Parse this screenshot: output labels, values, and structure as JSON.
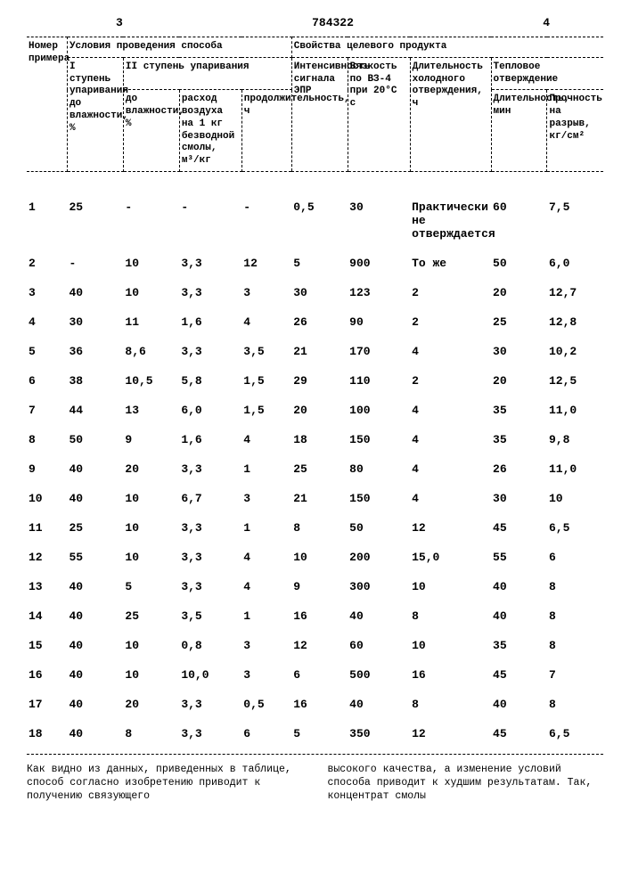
{
  "page": {
    "left_num": "3",
    "doc_num": "784322",
    "right_num": "4"
  },
  "head": {
    "col_id": "Номер примера",
    "group_a": "Условия проведения способа",
    "group_b": "Свойства целевого продукта",
    "r2_c2": "I ступень упаривания до влажности, %",
    "r2_c345": "II ступень упаривания",
    "r3_c3": "до влажности, %",
    "r3_c4": "расход воздуха на 1 кг безводной смолы, м³/кг",
    "r3_c5": "продолжительность, ч",
    "r2_c6": "Интенсивность сигнала ЭПР",
    "r2_c7": "Вязкость по ВЗ-4 при 20°С с",
    "r2_c8": "Длительность холодного отверждения, ч",
    "r2_c910": "Тепловое отверждение",
    "r3_c9": "Длительность, мин",
    "r3_c10": "Прочность на разрыв, кг/см²"
  },
  "rows": [
    [
      "1",
      "25",
      "-",
      "-",
      "-",
      "0,5",
      "30",
      "Практически не отверждается",
      "60",
      "7,5"
    ],
    [
      "2",
      "-",
      "10",
      "3,3",
      "12",
      "5",
      "900",
      "То же",
      "50",
      "6,0"
    ],
    [
      "3",
      "40",
      "10",
      "3,3",
      "3",
      "30",
      "123",
      "2",
      "20",
      "12,7"
    ],
    [
      "4",
      "30",
      "11",
      "1,6",
      "4",
      "26",
      "90",
      "2",
      "25",
      "12,8"
    ],
    [
      "5",
      "36",
      "8,6",
      "3,3",
      "3,5",
      "21",
      "170",
      "4",
      "30",
      "10,2"
    ],
    [
      "6",
      "38",
      "10,5",
      "5,8",
      "1,5",
      "29",
      "110",
      "2",
      "20",
      "12,5"
    ],
    [
      "7",
      "44",
      "13",
      "6,0",
      "1,5",
      "20",
      "100",
      "4",
      "35",
      "11,0"
    ],
    [
      "8",
      "50",
      "9",
      "1,6",
      "4",
      "18",
      "150",
      "4",
      "35",
      "9,8"
    ],
    [
      "9",
      "40",
      "20",
      "3,3",
      "1",
      "25",
      "80",
      "4",
      "26",
      "11,0"
    ],
    [
      "10",
      "40",
      "10",
      "6,7",
      "3",
      "21",
      "150",
      "4",
      "30",
      "10"
    ],
    [
      "11",
      "25",
      "10",
      "3,3",
      "1",
      "8",
      "50",
      "12",
      "45",
      "6,5"
    ],
    [
      "12",
      "55",
      "10",
      "3,3",
      "4",
      "10",
      "200",
      "15,0",
      "55",
      "6"
    ],
    [
      "13",
      "40",
      "5",
      "3,3",
      "4",
      "9",
      "300",
      "10",
      "40",
      "8"
    ],
    [
      "14",
      "40",
      "25",
      "3,5",
      "1",
      "16",
      "40",
      "8",
      "40",
      "8"
    ],
    [
      "15",
      "40",
      "10",
      "0,8",
      "3",
      "12",
      "60",
      "10",
      "35",
      "8"
    ],
    [
      "16",
      "40",
      "10",
      "10,0",
      "3",
      "6",
      "500",
      "16",
      "45",
      "7"
    ],
    [
      "17",
      "40",
      "20",
      "3,3",
      "0,5",
      "16",
      "40",
      "8",
      "40",
      "8"
    ],
    [
      "18",
      "40",
      "8",
      "3,3",
      "6",
      "5",
      "350",
      "12",
      "45",
      "6,5"
    ]
  ],
  "footer": {
    "left": "Как видно из данных, приведенных в таблице, способ согласно изобретению приводит к получению связующего",
    "right": "высокого качества, а изменение условий способа приводит к худшим результатам. Так, концентрат смолы"
  }
}
